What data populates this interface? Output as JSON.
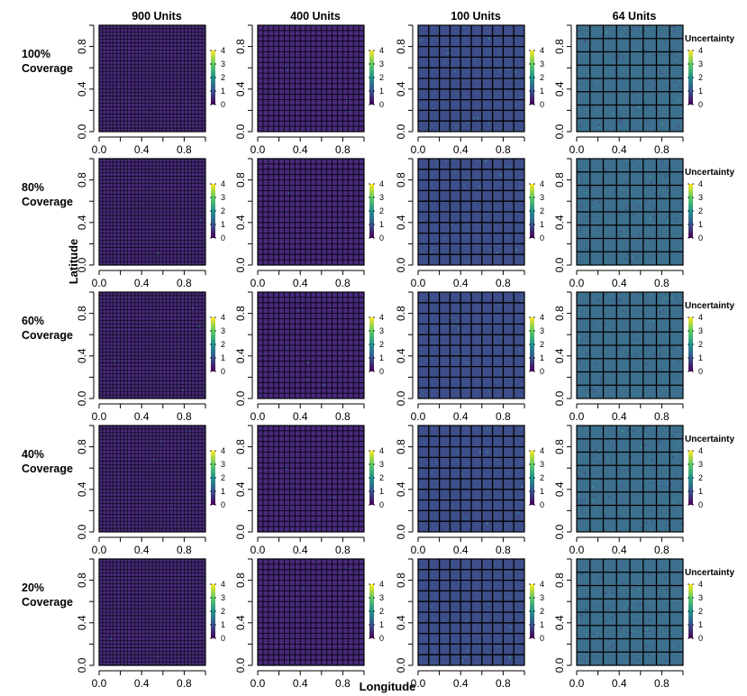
{
  "figure": {
    "x_axis_title": "Longitude",
    "y_axis_title": "Latitude",
    "legend_title": "Uncertainty"
  },
  "chart_data": {
    "type": "heatmap",
    "title": "",
    "xlabel": "Longitude",
    "ylabel": "Latitude",
    "xlim": [
      0,
      1
    ],
    "ylim": [
      0,
      1
    ],
    "x_ticks": [
      "0.0",
      "0.4",
      "0.8"
    ],
    "y_ticks": [
      "0.0",
      "0.4",
      "0.8"
    ],
    "legend": {
      "title": "Uncertainty",
      "range": [
        0,
        4
      ],
      "ticks": [
        "0",
        "1",
        "2",
        "3",
        "4"
      ],
      "colormap": "viridis",
      "colors": [
        "#440154",
        "#3b528b",
        "#21918c",
        "#5ec962",
        "#fde725"
      ]
    },
    "columns": [
      {
        "label": "900 Units",
        "units": 900,
        "grid": 30,
        "mean_uncertainty": 0.05,
        "fill": "#472a7a"
      },
      {
        "label": "400 Units",
        "units": 400,
        "grid": 20,
        "mean_uncertainty": 0.1,
        "fill": "#48297c"
      },
      {
        "label": "100 Units",
        "units": 100,
        "grid": 10,
        "mean_uncertainty": 0.6,
        "fill": "#3e4e8a"
      },
      {
        "label": "64 Units",
        "units": 64,
        "grid": 8,
        "mean_uncertainty": 1.0,
        "fill": "#3d6f8e"
      }
    ],
    "rows": [
      {
        "label": "100%",
        "label2": "Coverage",
        "coverage": 100
      },
      {
        "label": "80%",
        "label2": "Coverage",
        "coverage": 80
      },
      {
        "label": "60%",
        "label2": "Coverage",
        "coverage": 60
      },
      {
        "label": "40%",
        "label2": "Coverage",
        "coverage": 40
      },
      {
        "label": "20%",
        "label2": "Coverage",
        "coverage": 20
      }
    ]
  }
}
